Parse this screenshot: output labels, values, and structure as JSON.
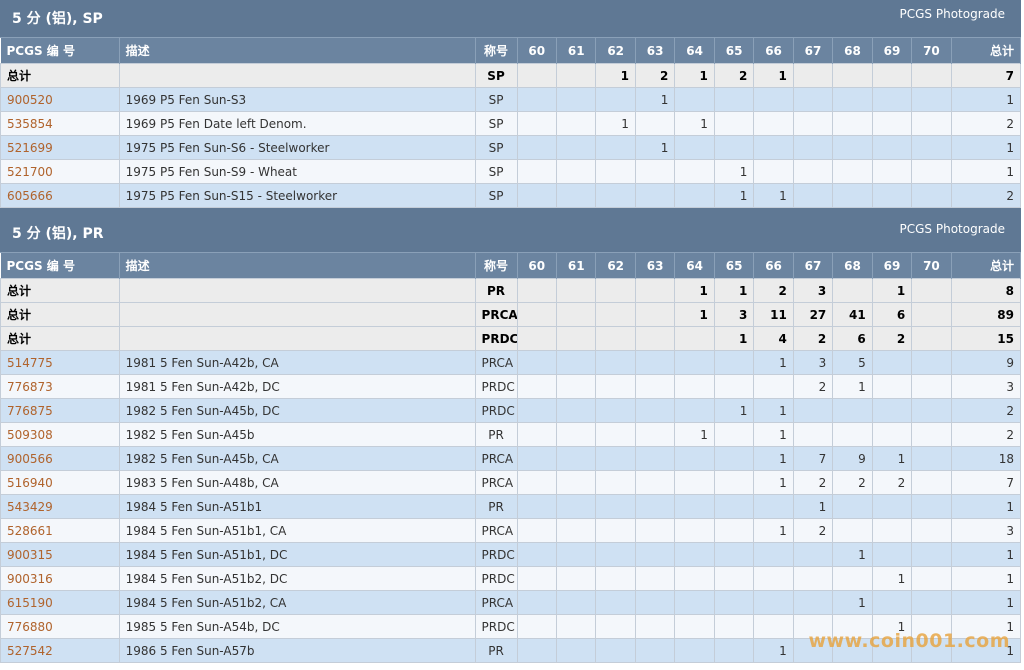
{
  "watermark": "www.coin001.com",
  "headers": [
    "PCGS 编 号",
    "描述",
    "称号",
    "60",
    "61",
    "62",
    "63",
    "64",
    "65",
    "66",
    "67",
    "68",
    "69",
    "70",
    "总计"
  ],
  "sections": [
    {
      "title": "5 分 (铝), SP",
      "photograde": "PCGS Photograde",
      "totals": [
        {
          "label": "总计",
          "designation": "SP",
          "grades": [
            "",
            "",
            "1",
            "2",
            "1",
            "2",
            "1",
            "",
            "",
            "",
            ""
          ],
          "total": "7"
        }
      ],
      "rows": [
        {
          "code": "900520",
          "desc": "1969 P5 Fen Sun-S3",
          "designation": "SP",
          "grades": [
            "",
            "",
            "",
            "1",
            "",
            "",
            "",
            "",
            "",
            "",
            ""
          ],
          "total": "1"
        },
        {
          "code": "535854",
          "desc": "1969 P5 Fen Date left Denom.",
          "designation": "SP",
          "grades": [
            "",
            "",
            "1",
            "",
            "1",
            "",
            "",
            "",
            "",
            "",
            ""
          ],
          "total": "2"
        },
        {
          "code": "521699",
          "desc": "1975 P5 Fen Sun-S6 - Steelworker",
          "designation": "SP",
          "grades": [
            "",
            "",
            "",
            "1",
            "",
            "",
            "",
            "",
            "",
            "",
            ""
          ],
          "total": "1"
        },
        {
          "code": "521700",
          "desc": "1975 P5 Fen Sun-S9 - Wheat",
          "designation": "SP",
          "grades": [
            "",
            "",
            "",
            "",
            "",
            "1",
            "",
            "",
            "",
            "",
            ""
          ],
          "total": "1"
        },
        {
          "code": "605666",
          "desc": "1975 P5 Fen Sun-S15 - Steelworker",
          "designation": "SP",
          "grades": [
            "",
            "",
            "",
            "",
            "",
            "1",
            "1",
            "",
            "",
            "",
            ""
          ],
          "total": "2"
        }
      ]
    },
    {
      "title": "5 分 (铝), PR",
      "photograde": "PCGS Photograde",
      "totals": [
        {
          "label": "总计",
          "designation": "PR",
          "grades": [
            "",
            "",
            "",
            "",
            "1",
            "1",
            "2",
            "3",
            "",
            "1",
            ""
          ],
          "total": "8"
        },
        {
          "label": "总计",
          "designation": "PRCA",
          "grades": [
            "",
            "",
            "",
            "",
            "1",
            "3",
            "11",
            "27",
            "41",
            "6",
            ""
          ],
          "total": "89"
        },
        {
          "label": "总计",
          "designation": "PRDC",
          "grades": [
            "",
            "",
            "",
            "",
            "",
            "1",
            "4",
            "2",
            "6",
            "2",
            ""
          ],
          "total": "15"
        }
      ],
      "rows": [
        {
          "code": "514775",
          "desc": "1981 5 Fen Sun-A42b, CA",
          "designation": "PRCA",
          "grades": [
            "",
            "",
            "",
            "",
            "",
            "",
            "1",
            "3",
            "5",
            "",
            ""
          ],
          "total": "9"
        },
        {
          "code": "776873",
          "desc": "1981 5 Fen Sun-A42b, DC",
          "designation": "PRDC",
          "grades": [
            "",
            "",
            "",
            "",
            "",
            "",
            "",
            "2",
            "1",
            "",
            ""
          ],
          "total": "3"
        },
        {
          "code": "776875",
          "desc": "1982 5 Fen Sun-A45b, DC",
          "designation": "PRDC",
          "grades": [
            "",
            "",
            "",
            "",
            "",
            "1",
            "1",
            "",
            "",
            "",
            ""
          ],
          "total": "2"
        },
        {
          "code": "509308",
          "desc": "1982 5 Fen Sun-A45b",
          "designation": "PR",
          "grades": [
            "",
            "",
            "",
            "",
            "1",
            "",
            "1",
            "",
            "",
            "",
            ""
          ],
          "total": "2"
        },
        {
          "code": "900566",
          "desc": "1982 5 Fen Sun-A45b, CA",
          "designation": "PRCA",
          "grades": [
            "",
            "",
            "",
            "",
            "",
            "",
            "1",
            "7",
            "9",
            "1",
            ""
          ],
          "total": "18"
        },
        {
          "code": "516940",
          "desc": "1983 5 Fen Sun-A48b, CA",
          "designation": "PRCA",
          "grades": [
            "",
            "",
            "",
            "",
            "",
            "",
            "1",
            "2",
            "2",
            "2",
            ""
          ],
          "total": "7"
        },
        {
          "code": "543429",
          "desc": "1984 5 Fen Sun-A51b1",
          "designation": "PR",
          "grades": [
            "",
            "",
            "",
            "",
            "",
            "",
            "",
            "1",
            "",
            "",
            ""
          ],
          "total": "1"
        },
        {
          "code": "528661",
          "desc": "1984 5 Fen Sun-A51b1, CA",
          "designation": "PRCA",
          "grades": [
            "",
            "",
            "",
            "",
            "",
            "",
            "1",
            "2",
            "",
            "",
            ""
          ],
          "total": "3"
        },
        {
          "code": "900315",
          "desc": "1984 5 Fen Sun-A51b1, DC",
          "designation": "PRDC",
          "grades": [
            "",
            "",
            "",
            "",
            "",
            "",
            "",
            "",
            "1",
            "",
            ""
          ],
          "total": "1"
        },
        {
          "code": "900316",
          "desc": "1984 5 Fen Sun-A51b2, DC",
          "designation": "PRDC",
          "grades": [
            "",
            "",
            "",
            "",
            "",
            "",
            "",
            "",
            "",
            "1",
            ""
          ],
          "total": "1"
        },
        {
          "code": "615190",
          "desc": "1984 5 Fen Sun-A51b2, CA",
          "designation": "PRCA",
          "grades": [
            "",
            "",
            "",
            "",
            "",
            "",
            "",
            "",
            "1",
            "",
            ""
          ],
          "total": "1"
        },
        {
          "code": "776880",
          "desc": "1985 5 Fen Sun-A54b, DC",
          "designation": "PRDC",
          "grades": [
            "",
            "",
            "",
            "",
            "",
            "",
            "",
            "",
            "",
            "1",
            ""
          ],
          "total": "1"
        },
        {
          "code": "527542",
          "desc": "1986 5 Fen Sun-A57b",
          "designation": "PR",
          "grades": [
            "",
            "",
            "",
            "",
            "",
            "",
            "1",
            "",
            "",
            "",
            ""
          ],
          "total": "1"
        }
      ]
    }
  ]
}
